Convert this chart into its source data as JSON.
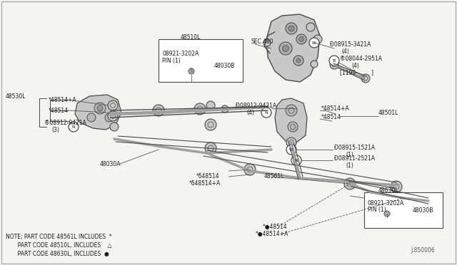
{
  "bg_color": "#f5f5f0",
  "line_color": "#4a4a4a",
  "text_color": "#1a1a1a",
  "light_gray": "#c8c8c8",
  "mid_gray": "#a0a0a0",
  "note_lines": [
    "NOTE; PART CODE 48561L INCLUDES  *",
    "       PART CODE 48510L, INCLUDES    △",
    "       PART CODE 48630L, INCLUDES  ●"
  ],
  "figsize": [
    6.4,
    3.72
  ],
  "dpi": 100
}
